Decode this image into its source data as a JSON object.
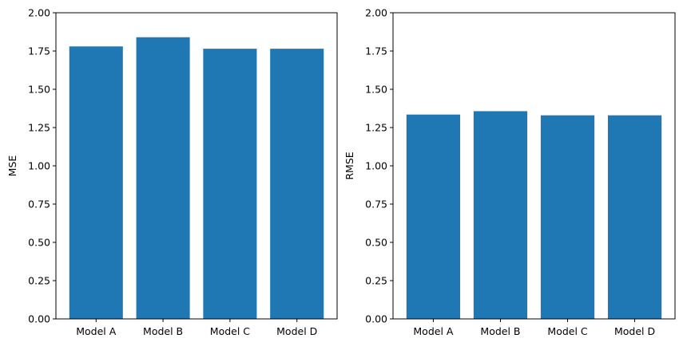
{
  "chart_data": [
    {
      "type": "bar",
      "categories": [
        "Model A",
        "Model B",
        "Model C",
        "Model D"
      ],
      "values": [
        1.78,
        1.84,
        1.765,
        1.765
      ],
      "xlabel": "",
      "ylabel": "MSE",
      "ylim": [
        0,
        2.0
      ],
      "yticks": [
        "0.00",
        "0.25",
        "0.50",
        "0.75",
        "1.00",
        "1.25",
        "1.50",
        "1.75",
        "2.00"
      ],
      "bar_color": "#1f77b4",
      "grid": false
    },
    {
      "type": "bar",
      "categories": [
        "Model A",
        "Model B",
        "Model C",
        "Model D"
      ],
      "values": [
        1.335,
        1.357,
        1.33,
        1.33
      ],
      "xlabel": "",
      "ylabel": "RMSE",
      "ylim": [
        0,
        2.0
      ],
      "yticks": [
        "0.00",
        "0.25",
        "0.50",
        "0.75",
        "1.00",
        "1.25",
        "1.50",
        "1.75",
        "2.00"
      ],
      "bar_color": "#1f77b4",
      "grid": false
    }
  ]
}
